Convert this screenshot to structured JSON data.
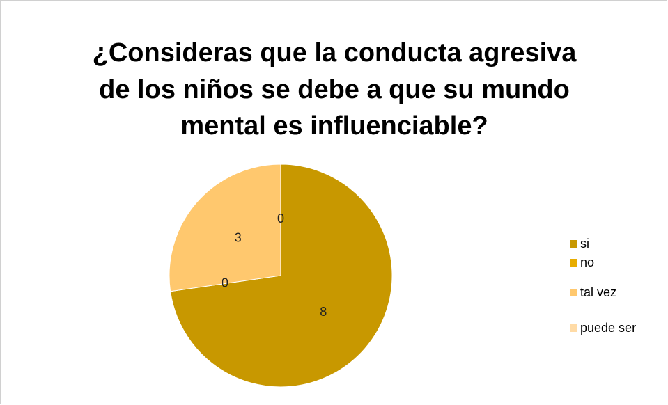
{
  "chart_data": {
    "type": "pie",
    "title": [
      "¿Consideras que la conducta agresiva",
      "de los niños se debe a que su mundo",
      "mental es influenciable?"
    ],
    "categories": [
      "si",
      "no",
      "tal vez",
      "puede ser"
    ],
    "values": [
      8,
      0,
      3,
      0
    ],
    "colors": [
      "#c89800",
      "#e8ad00",
      "#ffc86e",
      "#ffdba6"
    ],
    "legend": "right"
  }
}
